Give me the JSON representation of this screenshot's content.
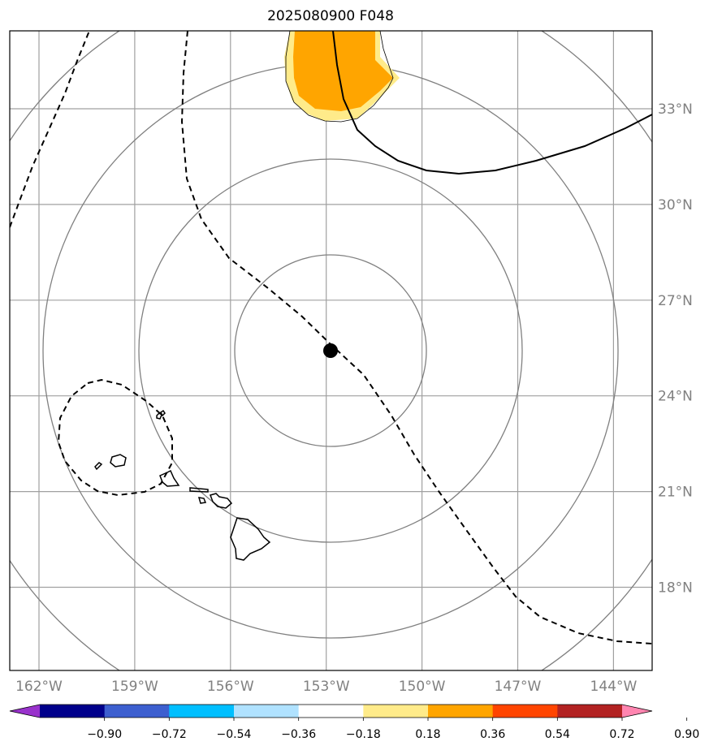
{
  "title": "2025080900 F048",
  "map": {
    "storm_center": {
      "lon": -152.9,
      "lat": 25.4
    },
    "lon_ticks": [
      {
        "value": -162,
        "label": "162°W"
      },
      {
        "value": -159,
        "label": "159°W"
      },
      {
        "value": -156,
        "label": "156°W"
      },
      {
        "value": -153,
        "label": "153°W"
      },
      {
        "value": -150,
        "label": "150°W"
      },
      {
        "value": -147,
        "label": "147°W"
      },
      {
        "value": -144,
        "label": "144°W"
      }
    ],
    "lat_ticks": [
      {
        "value": 33,
        "label": "33°N"
      },
      {
        "value": 30,
        "label": "30°N"
      },
      {
        "value": 27,
        "label": "27°N"
      },
      {
        "value": 24,
        "label": "24°N"
      },
      {
        "value": 21,
        "label": "21°N"
      },
      {
        "value": 18,
        "label": "18°N"
      }
    ],
    "range_rings_count": 4,
    "shaded_field_colors": [
      "#ffa500",
      "#ffeb8a"
    ],
    "track_line_color": "#000000",
    "grid_color": "#a0a0a0"
  },
  "colorbar": {
    "colors": [
      "#9932cc",
      "#00008b",
      "#3d5fcf",
      "#00bfff",
      "#b0e2ff",
      "#ffffff",
      "#ffeb8a",
      "#ffa500",
      "#ff4500",
      "#b22222",
      "#ff85b0"
    ],
    "labels": [
      "−0.90",
      "−0.72",
      "−0.54",
      "−0.36",
      "−0.18",
      "0.18",
      "0.36",
      "0.54",
      "0.72",
      "0.90"
    ]
  }
}
